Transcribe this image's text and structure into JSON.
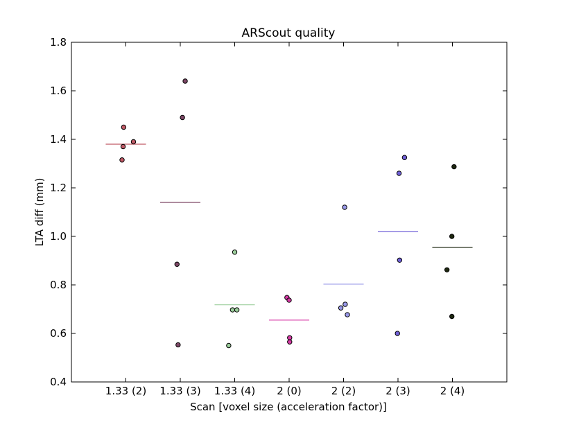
{
  "chart_data": {
    "type": "scatter",
    "title": "ARScout quality",
    "xlabel": "Scan [voxel size (acceleration factor)]",
    "ylabel": "LTA diff (mm)",
    "ylim": [
      0.4,
      1.8
    ],
    "yticks": [
      "0.4",
      "0.6",
      "0.8",
      "1.0",
      "1.2",
      "1.4",
      "1.6",
      "1.8"
    ],
    "grid": false,
    "categories": [
      "1.33 (2)",
      "1.33 (3)",
      "1.33 (4)",
      "2 (0)",
      "2 (2)",
      "2 (3)",
      "2 (4)"
    ],
    "series": [
      {
        "category": "1.33 (2)",
        "color": "#c05a66",
        "points": [
          1.45,
          1.39,
          1.37,
          1.315
        ],
        "jitter": [
          -0.04,
          0.14,
          -0.05,
          -0.07
        ],
        "mean": 1.38
      },
      {
        "category": "1.33 (3)",
        "color": "#7d4866",
        "points": [
          1.64,
          1.49,
          0.885,
          0.553
        ],
        "jitter": [
          0.09,
          0.04,
          -0.06,
          -0.04
        ],
        "mean": 1.14
      },
      {
        "category": "1.33 (4)",
        "color": "#9dcf9d",
        "points": [
          0.935,
          0.697,
          0.697,
          0.55
        ],
        "jitter": [
          0.0,
          -0.04,
          0.04,
          -0.11
        ],
        "mean": 0.718
      },
      {
        "category": "2 (0)",
        "color": "#d63aa6",
        "points": [
          0.748,
          0.737,
          0.582,
          0.565
        ],
        "jitter": [
          -0.04,
          0.0,
          0.01,
          0.01
        ],
        "mean": 0.655
      },
      {
        "category": "2 (2)",
        "color": "#9898e8",
        "points": [
          1.12,
          0.72,
          0.705,
          0.677
        ],
        "jitter": [
          0.02,
          0.03,
          -0.05,
          0.07
        ],
        "mean": 0.803
      },
      {
        "category": "2 (3)",
        "color": "#7060d8",
        "points": [
          1.325,
          1.26,
          0.902,
          0.6
        ],
        "jitter": [
          0.12,
          0.02,
          0.03,
          -0.01
        ],
        "mean": 1.02
      },
      {
        "category": "2 (4)",
        "color": "#1e2810",
        "points": [
          1.287,
          1.0,
          0.862,
          0.67
        ],
        "jitter": [
          0.03,
          -0.01,
          -0.1,
          -0.01
        ],
        "mean": 0.955
      }
    ]
  }
}
